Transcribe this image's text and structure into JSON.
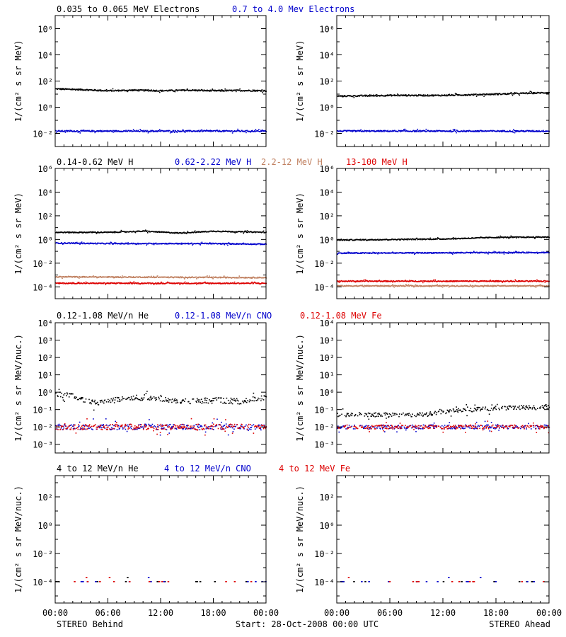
{
  "footer": {
    "left": "STEREO Behind",
    "center": "Start: 28-Oct-2008 00:00 UTC",
    "right": "STEREO Ahead"
  },
  "x_ticks": [
    "00:00",
    "06:00",
    "12:00",
    "18:00",
    "00:00"
  ],
  "rows": [
    {
      "row_title": [
        {
          "text": "0.035 to 0.065 MeV Electrons",
          "color": "#000000"
        },
        {
          "text": "0.7 to 4.0 Mev Electrons",
          "color": "#0000cc"
        }
      ]
    },
    {
      "row_title": [
        {
          "text": "0.14-0.62 MeV H",
          "color": "#000000"
        },
        {
          "text": "0.62-2.22 MeV H",
          "color": "#0000cc"
        },
        {
          "text": "2.2-12 MeV H",
          "color": "#c08060"
        },
        {
          "text": "13-100 MeV H",
          "color": "#dd0000"
        }
      ]
    },
    {
      "row_title": [
        {
          "text": "0.12-1.08 MeV/n He",
          "color": "#000000"
        },
        {
          "text": "0.12-1.08 MeV/n CNO",
          "color": "#0000cc"
        },
        {
          "text": "0.12-1.08 MeV Fe",
          "color": "#dd0000"
        }
      ]
    },
    {
      "row_title": [
        {
          "text": "4 to 12 MeV/n He",
          "color": "#000000"
        },
        {
          "text": "4 to 12 MeV/n CNO",
          "color": "#0000cc"
        },
        {
          "text": "4 to 12 MeV Fe",
          "color": "#dd0000"
        }
      ]
    }
  ],
  "chart_data": [
    {
      "type": "scatter",
      "panel": "electrons-behind",
      "ylabel": "1/(cm² s sr MeV)",
      "yscale": "log",
      "ylim_exp": [
        -3,
        7
      ],
      "yticks": [
        "10⁻²",
        "10⁰",
        "10²",
        "10⁴",
        "10⁶"
      ],
      "ytick_exp": [
        -2,
        0,
        2,
        4,
        6
      ],
      "x_hours": [
        0,
        24
      ],
      "scatter_pct": 12,
      "series": [
        {
          "name": "0.035 to 0.065 MeV Electrons",
          "color": "#000000",
          "profile": [
            [
              0,
              25
            ],
            [
              3,
              22
            ],
            [
              6,
              18
            ],
            [
              9,
              20
            ],
            [
              12,
              18
            ],
            [
              15,
              20
            ],
            [
              18,
              18
            ],
            [
              21,
              19
            ],
            [
              24,
              18
            ]
          ]
        },
        {
          "name": "0.7 to 4.0 Mev Electrons",
          "color": "#0000cc",
          "profile": [
            [
              0,
              0.015
            ],
            [
              24,
              0.015
            ]
          ]
        }
      ]
    },
    {
      "type": "scatter",
      "panel": "electrons-ahead",
      "ylabel": "1/(cm² s sr MeV)",
      "yscale": "log",
      "ylim_exp": [
        -3,
        7
      ],
      "yticks": [
        "10⁻²",
        "10⁰",
        "10²",
        "10⁴",
        "10⁶"
      ],
      "ytick_exp": [
        -2,
        0,
        2,
        4,
        6
      ],
      "x_hours": [
        0,
        24
      ],
      "scatter_pct": 12,
      "series": [
        {
          "name": "0.035 to 0.065 MeV Electrons",
          "color": "#000000",
          "profile": [
            [
              0,
              7
            ],
            [
              6,
              8
            ],
            [
              12,
              8
            ],
            [
              18,
              10
            ],
            [
              24,
              13
            ]
          ]
        },
        {
          "name": "0.7 to 4.0 Mev Electrons",
          "color": "#0000cc",
          "profile": [
            [
              0,
              0.015
            ],
            [
              24,
              0.015
            ]
          ]
        }
      ]
    },
    {
      "type": "scatter",
      "panel": "protons-behind",
      "ylabel": "1/(cm² s sr MeV)",
      "yscale": "log",
      "ylim_exp": [
        -5,
        6
      ],
      "yticks": [
        "10⁻⁴",
        "10⁻²",
        "10⁰",
        "10²",
        "10⁴",
        "10⁶"
      ],
      "ytick_exp": [
        -4,
        -2,
        0,
        2,
        4,
        6
      ],
      "x_hours": [
        0,
        24
      ],
      "scatter_pct": 10,
      "series": [
        {
          "name": "0.14-0.62 MeV H",
          "color": "#000000",
          "profile": [
            [
              0,
              4
            ],
            [
              6,
              4
            ],
            [
              10,
              5
            ],
            [
              14,
              3.5
            ],
            [
              18,
              5
            ],
            [
              24,
              4
            ]
          ]
        },
        {
          "name": "0.62-2.22 MeV H",
          "color": "#0000cc",
          "profile": [
            [
              0,
              0.5
            ],
            [
              6,
              0.45
            ],
            [
              12,
              0.45
            ],
            [
              18,
              0.45
            ],
            [
              24,
              0.4
            ]
          ]
        },
        {
          "name": "2.2-12 MeV H",
          "color": "#c08060",
          "profile": [
            [
              0,
              0.0007
            ],
            [
              24,
              0.0006
            ]
          ]
        },
        {
          "name": "13-100 MeV H",
          "color": "#dd0000",
          "profile": [
            [
              0,
              0.0002
            ],
            [
              24,
              0.0002
            ]
          ]
        }
      ]
    },
    {
      "type": "scatter",
      "panel": "protons-ahead",
      "ylabel": "1/(cm² s sr MeV)",
      "yscale": "log",
      "ylim_exp": [
        -5,
        6
      ],
      "yticks": [
        "10⁻⁴",
        "10⁻²",
        "10⁰",
        "10²",
        "10⁴",
        "10⁶"
      ],
      "ytick_exp": [
        -4,
        -2,
        0,
        2,
        4,
        6
      ],
      "x_hours": [
        0,
        24
      ],
      "scatter_pct": 10,
      "series": [
        {
          "name": "0.14-0.62 MeV H",
          "color": "#000000",
          "profile": [
            [
              0,
              0.9
            ],
            [
              12,
              1.1
            ],
            [
              18,
              1.5
            ],
            [
              24,
              1.6
            ]
          ]
        },
        {
          "name": "0.62-2.22 MeV H",
          "color": "#0000cc",
          "profile": [
            [
              0,
              0.07
            ],
            [
              24,
              0.08
            ]
          ]
        },
        {
          "name": "2.2-12 MeV H",
          "color": "#c08060",
          "profile": [
            [
              0,
              0.00012
            ],
            [
              24,
              0.00012
            ]
          ]
        },
        {
          "name": "13-100 MeV H",
          "color": "#dd0000",
          "profile": [
            [
              0,
              0.0003
            ],
            [
              24,
              0.0003
            ]
          ]
        }
      ]
    },
    {
      "type": "scatter",
      "panel": "heavy-low-behind",
      "ylabel": "1/(cm² s sr MeV/nuc.)",
      "yscale": "log",
      "ylim_exp": [
        -3.5,
        4
      ],
      "yticks": [
        "10⁻³",
        "10⁻²",
        "10⁻¹",
        "10⁰",
        "10¹",
        "10²",
        "10³",
        "10⁴"
      ],
      "ytick_exp": [
        -3,
        -2,
        -1,
        0,
        1,
        2,
        3,
        4
      ],
      "x_hours": [
        0,
        24
      ],
      "scatter_pct": 45,
      "series": [
        {
          "name": "0.12-1.08 MeV/n He",
          "color": "#000000",
          "profile": [
            [
              0,
              0.8
            ],
            [
              2,
              0.6
            ],
            [
              4,
              0.25
            ],
            [
              6,
              0.3
            ],
            [
              8,
              0.5
            ],
            [
              12,
              0.45
            ],
            [
              14,
              0.3
            ],
            [
              18,
              0.35
            ],
            [
              21,
              0.3
            ],
            [
              24,
              0.5
            ]
          ]
        },
        {
          "name": "0.12-1.08 MeV/n CNO",
          "color": "#0000cc",
          "profile": [
            [
              0,
              0.01
            ],
            [
              24,
              0.01
            ]
          ]
        },
        {
          "name": "0.12-1.08 MeV Fe",
          "color": "#dd0000",
          "profile": [
            [
              0,
              0.01
            ],
            [
              24,
              0.01
            ]
          ]
        }
      ]
    },
    {
      "type": "scatter",
      "panel": "heavy-low-ahead",
      "ylabel": "1/(cm² s sr MeV/nuc.)",
      "yscale": "log",
      "ylim_exp": [
        -3.5,
        4
      ],
      "yticks": [
        "10⁻³",
        "10⁻²",
        "10⁻¹",
        "10⁰",
        "10¹",
        "10²",
        "10³",
        "10⁴"
      ],
      "ytick_exp": [
        -3,
        -2,
        -1,
        0,
        1,
        2,
        3,
        4
      ],
      "x_hours": [
        0,
        24
      ],
      "scatter_pct": 30,
      "series": [
        {
          "name": "0.12-1.08 MeV/n He",
          "color": "#000000",
          "profile": [
            [
              0,
              0.05
            ],
            [
              10,
              0.05
            ],
            [
              12,
              0.08
            ],
            [
              18,
              0.12
            ],
            [
              24,
              0.15
            ]
          ]
        },
        {
          "name": "0.12-1.08 MeV/n CNO",
          "color": "#0000cc",
          "profile": [
            [
              0,
              0.01
            ],
            [
              24,
              0.01
            ]
          ]
        },
        {
          "name": "0.12-1.08 MeV Fe",
          "color": "#dd0000",
          "profile": [
            [
              0,
              0.01
            ],
            [
              24,
              0.01
            ]
          ]
        }
      ]
    },
    {
      "type": "scatter",
      "panel": "heavy-high-behind",
      "ylabel": "1/(cm² s sr MeV/nuc.)",
      "yscale": "log",
      "ylim_exp": [
        -5.5,
        3.5
      ],
      "yticks": [
        "10⁻⁴",
        "10⁻²",
        "10⁰",
        "10²"
      ],
      "ytick_exp": [
        -4,
        -2,
        0,
        2
      ],
      "x_hours": [
        0,
        24
      ],
      "scatter_pct": 0,
      "series": [
        {
          "name": "4 to 12 MeV/n He",
          "color": "#000000",
          "sparse": true,
          "profile": [
            [
              0,
              0.0001
            ],
            [
              24,
              0.0001
            ]
          ]
        },
        {
          "name": "4 to 12 MeV/n CNO",
          "color": "#0000cc",
          "sparse": true,
          "profile": [
            [
              0,
              0.0001
            ],
            [
              24,
              0.0001
            ]
          ]
        },
        {
          "name": "4 to 12 MeV Fe",
          "color": "#dd0000",
          "sparse": true,
          "profile": [
            [
              0,
              0.0001
            ],
            [
              24,
              0.0001
            ]
          ]
        }
      ]
    },
    {
      "type": "scatter",
      "panel": "heavy-high-ahead",
      "ylabel": "1/(cm² s sr MeV/nuc.)",
      "yscale": "log",
      "ylim_exp": [
        -5.5,
        3.5
      ],
      "yticks": [
        "10⁻⁴",
        "10⁻²",
        "10⁰",
        "10²"
      ],
      "ytick_exp": [
        -4,
        -2,
        0,
        2
      ],
      "x_hours": [
        0,
        24
      ],
      "scatter_pct": 0,
      "series": [
        {
          "name": "4 to 12 MeV/n He",
          "color": "#000000",
          "sparse": true,
          "profile": [
            [
              0,
              0.0001
            ],
            [
              24,
              0.0001
            ]
          ]
        },
        {
          "name": "4 to 12 MeV/n CNO",
          "color": "#0000cc",
          "sparse": true,
          "profile": [
            [
              0,
              0.0001
            ],
            [
              24,
              0.0001
            ]
          ]
        },
        {
          "name": "4 to 12 MeV Fe",
          "color": "#dd0000",
          "sparse": true,
          "profile": [
            [
              0,
              0.0001
            ],
            [
              24,
              0.0001
            ]
          ]
        }
      ]
    }
  ]
}
